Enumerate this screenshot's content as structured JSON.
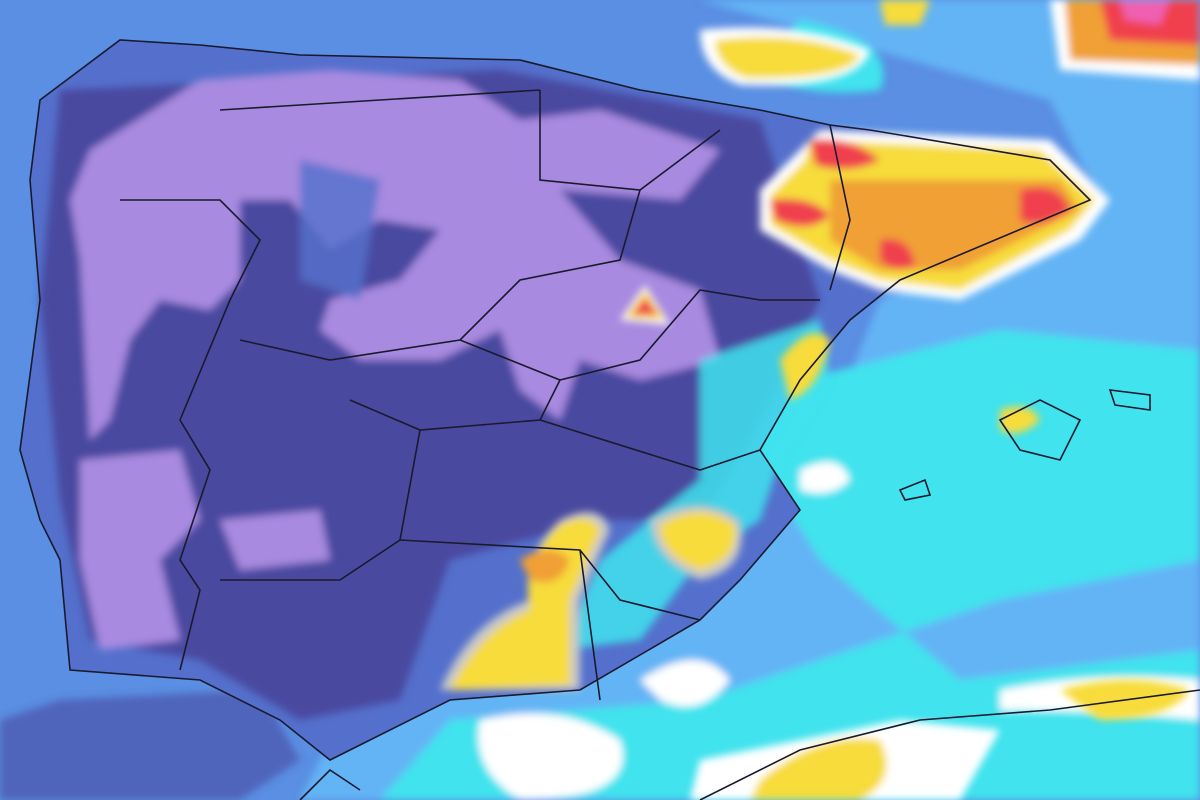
{
  "map": {
    "layers": [
      "sea-background",
      "precipitation-bands",
      "land-outline",
      "region-borders"
    ],
    "colors": {
      "sea": "#5a8fe3",
      "light_blue": "#63b4f5",
      "cyan": "#3fe3ee",
      "white": "#ffffff",
      "land_blue": "#5470cc",
      "dark_navy": "#4a4aa0",
      "lavender": "#a88ae0",
      "yellow": "#f7dc3a",
      "orange": "#f0a035",
      "red": "#f0414d",
      "magenta": "#f060b0",
      "grey": "#c8c8c8",
      "border": "#1a1a2e"
    }
  }
}
